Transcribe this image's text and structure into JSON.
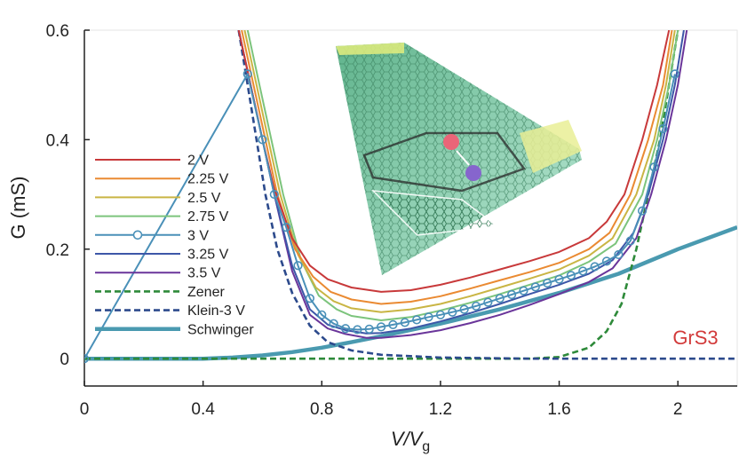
{
  "chart_data": {
    "type": "line",
    "title": "",
    "xlabel": "V/V",
    "xlabel_sub": "g",
    "ylabel": "G (mS)",
    "xlim": [
      0,
      2.2
    ],
    "ylim": [
      -0.05,
      0.6
    ],
    "x_ticks": [
      0,
      0.4,
      0.8,
      1.2,
      1.6,
      2.0
    ],
    "x_tick_labels": [
      "0",
      "0.4",
      "0.8",
      "1.2",
      "1.6",
      "2"
    ],
    "y_ticks": [
      0,
      0.2,
      0.4,
      0.6
    ],
    "y_tick_labels": [
      "0",
      "0.2",
      "0.4",
      "0.6"
    ],
    "grid": false,
    "legend_position": "left-middle",
    "annotation": {
      "text": "GrS3",
      "color": "#d23a3a"
    },
    "series": [
      {
        "name": "2 V",
        "color": "#c8393a",
        "style": "solid",
        "points": [
          [
            0.52,
            0.6
          ],
          [
            0.56,
            0.5
          ],
          [
            0.6,
            0.4
          ],
          [
            0.64,
            0.31
          ],
          [
            0.7,
            0.22
          ],
          [
            0.76,
            0.17
          ],
          [
            0.82,
            0.145
          ],
          [
            0.9,
            0.13
          ],
          [
            1.0,
            0.122
          ],
          [
            1.1,
            0.125
          ],
          [
            1.2,
            0.135
          ],
          [
            1.3,
            0.148
          ],
          [
            1.4,
            0.163
          ],
          [
            1.5,
            0.178
          ],
          [
            1.6,
            0.195
          ],
          [
            1.7,
            0.22
          ],
          [
            1.76,
            0.25
          ],
          [
            1.82,
            0.3
          ],
          [
            1.88,
            0.4
          ],
          [
            1.93,
            0.5
          ],
          [
            1.97,
            0.6
          ]
        ]
      },
      {
        "name": "2.25 V",
        "color": "#ea8a32",
        "style": "solid",
        "points": [
          [
            0.53,
            0.6
          ],
          [
            0.57,
            0.5
          ],
          [
            0.61,
            0.4
          ],
          [
            0.65,
            0.3
          ],
          [
            0.71,
            0.2
          ],
          [
            0.77,
            0.15
          ],
          [
            0.83,
            0.122
          ],
          [
            0.9,
            0.108
          ],
          [
            1.0,
            0.1
          ],
          [
            1.1,
            0.104
          ],
          [
            1.2,
            0.114
          ],
          [
            1.3,
            0.128
          ],
          [
            1.4,
            0.143
          ],
          [
            1.5,
            0.158
          ],
          [
            1.6,
            0.175
          ],
          [
            1.7,
            0.2
          ],
          [
            1.77,
            0.23
          ],
          [
            1.84,
            0.3
          ],
          [
            1.9,
            0.4
          ],
          [
            1.95,
            0.5
          ],
          [
            1.98,
            0.6
          ]
        ]
      },
      {
        "name": "2.5 V",
        "color": "#c9b544",
        "style": "solid",
        "points": [
          [
            0.54,
            0.6
          ],
          [
            0.58,
            0.5
          ],
          [
            0.62,
            0.4
          ],
          [
            0.66,
            0.3
          ],
          [
            0.72,
            0.19
          ],
          [
            0.78,
            0.13
          ],
          [
            0.84,
            0.105
          ],
          [
            0.9,
            0.092
          ],
          [
            1.0,
            0.085
          ],
          [
            1.1,
            0.09
          ],
          [
            1.2,
            0.1
          ],
          [
            1.3,
            0.114
          ],
          [
            1.4,
            0.13
          ],
          [
            1.5,
            0.146
          ],
          [
            1.6,
            0.163
          ],
          [
            1.7,
            0.188
          ],
          [
            1.78,
            0.22
          ],
          [
            1.86,
            0.3
          ],
          [
            1.92,
            0.4
          ],
          [
            1.96,
            0.5
          ],
          [
            1.99,
            0.6
          ]
        ]
      },
      {
        "name": "2.75 V",
        "color": "#7cc47c",
        "style": "solid",
        "points": [
          [
            0.55,
            0.6
          ],
          [
            0.59,
            0.5
          ],
          [
            0.63,
            0.4
          ],
          [
            0.67,
            0.3
          ],
          [
            0.73,
            0.18
          ],
          [
            0.79,
            0.115
          ],
          [
            0.85,
            0.09
          ],
          [
            0.9,
            0.078
          ],
          [
            1.0,
            0.07
          ],
          [
            1.1,
            0.076
          ],
          [
            1.2,
            0.088
          ],
          [
            1.3,
            0.102
          ],
          [
            1.4,
            0.118
          ],
          [
            1.5,
            0.135
          ],
          [
            1.6,
            0.152
          ],
          [
            1.7,
            0.177
          ],
          [
            1.79,
            0.21
          ],
          [
            1.88,
            0.3
          ],
          [
            1.93,
            0.4
          ],
          [
            1.97,
            0.5
          ],
          [
            2.0,
            0.6
          ]
        ]
      },
      {
        "name": "3 V",
        "color": "#4a90b8",
        "style": "circles",
        "points": [
          [
            0.0,
            0.0
          ],
          [
            0.55,
            0.52
          ],
          [
            0.6,
            0.4
          ],
          [
            0.64,
            0.3
          ],
          [
            0.68,
            0.24
          ],
          [
            0.72,
            0.17
          ],
          [
            0.76,
            0.11
          ],
          [
            0.8,
            0.08
          ],
          [
            0.84,
            0.064
          ],
          [
            0.88,
            0.055
          ],
          [
            0.92,
            0.053
          ],
          [
            0.96,
            0.054
          ],
          [
            1.0,
            0.058
          ],
          [
            1.04,
            0.062
          ],
          [
            1.08,
            0.066
          ],
          [
            1.12,
            0.071
          ],
          [
            1.16,
            0.076
          ],
          [
            1.2,
            0.08
          ],
          [
            1.24,
            0.085
          ],
          [
            1.28,
            0.09
          ],
          [
            1.32,
            0.096
          ],
          [
            1.36,
            0.103
          ],
          [
            1.4,
            0.11
          ],
          [
            1.44,
            0.117
          ],
          [
            1.48,
            0.124
          ],
          [
            1.52,
            0.131
          ],
          [
            1.56,
            0.138
          ],
          [
            1.6,
            0.145
          ],
          [
            1.64,
            0.152
          ],
          [
            1.68,
            0.16
          ],
          [
            1.72,
            0.168
          ],
          [
            1.76,
            0.178
          ],
          [
            1.8,
            0.19
          ],
          [
            1.84,
            0.215
          ],
          [
            1.88,
            0.27
          ],
          [
            1.92,
            0.35
          ],
          [
            1.95,
            0.42
          ],
          [
            1.99,
            0.52
          ]
        ]
      },
      {
        "name": "3.25 V",
        "color": "#3d57a8",
        "style": "solid",
        "points": [
          [
            0.52,
            0.6
          ],
          [
            0.56,
            0.5
          ],
          [
            0.6,
            0.4
          ],
          [
            0.64,
            0.3
          ],
          [
            0.7,
            0.17
          ],
          [
            0.76,
            0.09
          ],
          [
            0.82,
            0.062
          ],
          [
            0.88,
            0.052
          ],
          [
            0.95,
            0.046
          ],
          [
            1.0,
            0.047
          ],
          [
            1.1,
            0.055
          ],
          [
            1.2,
            0.068
          ],
          [
            1.3,
            0.083
          ],
          [
            1.4,
            0.1
          ],
          [
            1.5,
            0.118
          ],
          [
            1.6,
            0.135
          ],
          [
            1.7,
            0.155
          ],
          [
            1.78,
            0.18
          ],
          [
            1.85,
            0.23
          ],
          [
            1.9,
            0.3
          ],
          [
            1.95,
            0.4
          ],
          [
            1.99,
            0.5
          ],
          [
            2.02,
            0.6
          ]
        ]
      },
      {
        "name": "3.5 V",
        "color": "#6a359a",
        "style": "solid",
        "points": [
          [
            0.52,
            0.6
          ],
          [
            0.56,
            0.5
          ],
          [
            0.6,
            0.4
          ],
          [
            0.64,
            0.3
          ],
          [
            0.7,
            0.16
          ],
          [
            0.76,
            0.08
          ],
          [
            0.82,
            0.055
          ],
          [
            0.88,
            0.045
          ],
          [
            0.95,
            0.038
          ],
          [
            1.0,
            0.038
          ],
          [
            1.1,
            0.043
          ],
          [
            1.2,
            0.052
          ],
          [
            1.3,
            0.065
          ],
          [
            1.4,
            0.08
          ],
          [
            1.5,
            0.098
          ],
          [
            1.6,
            0.118
          ],
          [
            1.7,
            0.14
          ],
          [
            1.78,
            0.165
          ],
          [
            1.86,
            0.22
          ],
          [
            1.91,
            0.3
          ],
          [
            1.96,
            0.4
          ],
          [
            2.0,
            0.5
          ],
          [
            2.03,
            0.6
          ]
        ]
      },
      {
        "name": "Zener",
        "color": "#2e8a3a",
        "style": "dashed",
        "points": [
          [
            0.0,
            0.0
          ],
          [
            1.5,
            0.0
          ],
          [
            1.6,
            0.003
          ],
          [
            1.7,
            0.02
          ],
          [
            1.76,
            0.05
          ],
          [
            1.81,
            0.1
          ],
          [
            1.86,
            0.2
          ],
          [
            1.9,
            0.3
          ],
          [
            1.94,
            0.4
          ],
          [
            1.97,
            0.5
          ],
          [
            2.0,
            0.6
          ]
        ]
      },
      {
        "name": "Klein-3 V",
        "color": "#2c4a8c",
        "style": "dashed",
        "points": [
          [
            0.52,
            0.6
          ],
          [
            0.55,
            0.5
          ],
          [
            0.58,
            0.4
          ],
          [
            0.61,
            0.3
          ],
          [
            0.65,
            0.2
          ],
          [
            0.7,
            0.12
          ],
          [
            0.76,
            0.06
          ],
          [
            0.82,
            0.03
          ],
          [
            0.9,
            0.015
          ],
          [
            1.0,
            0.007
          ],
          [
            1.2,
            0.002
          ],
          [
            1.5,
            0.0
          ],
          [
            2.2,
            0.0
          ]
        ]
      },
      {
        "name": "Schwinger",
        "color": "#4a9ab0",
        "style": "thick",
        "points": [
          [
            0.0,
            0.0
          ],
          [
            0.4,
            0.0
          ],
          [
            0.5,
            0.002
          ],
          [
            0.6,
            0.006
          ],
          [
            0.7,
            0.012
          ],
          [
            0.8,
            0.02
          ],
          [
            0.9,
            0.03
          ],
          [
            1.0,
            0.041
          ],
          [
            1.2,
            0.064
          ],
          [
            1.4,
            0.09
          ],
          [
            1.6,
            0.12
          ],
          [
            1.8,
            0.155
          ],
          [
            2.0,
            0.2
          ],
          [
            2.2,
            0.24
          ]
        ]
      }
    ]
  }
}
